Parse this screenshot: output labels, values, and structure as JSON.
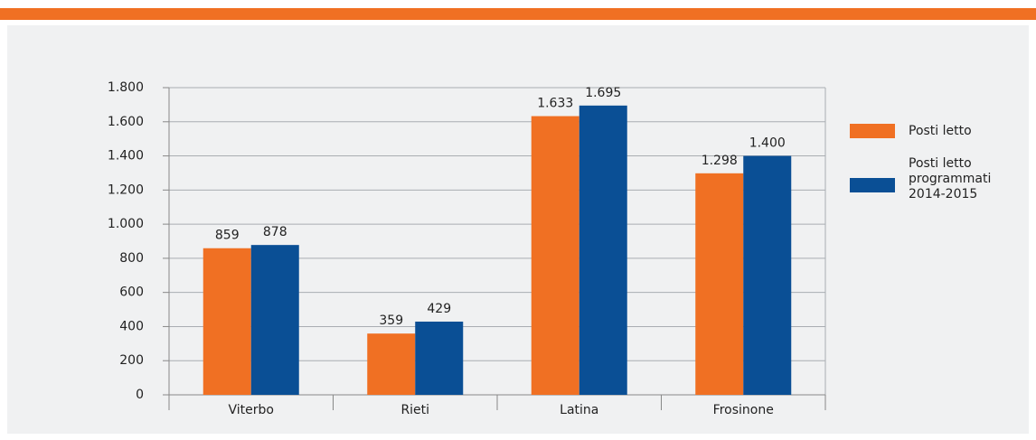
{
  "chart_data": {
    "type": "bar",
    "categories": [
      "Viterbo",
      "Rieti",
      "Latina",
      "Frosinone"
    ],
    "series": [
      {
        "name": "Posti letto",
        "color": "#f07023",
        "values": [
          859,
          359,
          1633,
          1298
        ],
        "value_labels": [
          "859",
          "359",
          "1.633",
          "1.298"
        ]
      },
      {
        "name": "Posti letto programmati 2014-2015",
        "color": "#0a4f95",
        "values": [
          878,
          429,
          1695,
          1400
        ],
        "value_labels": [
          "878",
          "429",
          "1.695",
          "1.400"
        ]
      }
    ],
    "ylim": [
      0,
      1800
    ],
    "yticks": [
      0,
      200,
      400,
      600,
      800,
      {
        "value": 1000,
        "label": "1.000"
      },
      {
        "value": 1200,
        "label": "1.200"
      },
      {
        "value": 1400,
        "label": "1.400"
      },
      {
        "value": 1600,
        "label": "1.600"
      },
      {
        "value": 1800,
        "label": "1.800"
      }
    ],
    "grid": true,
    "legend": "right"
  }
}
